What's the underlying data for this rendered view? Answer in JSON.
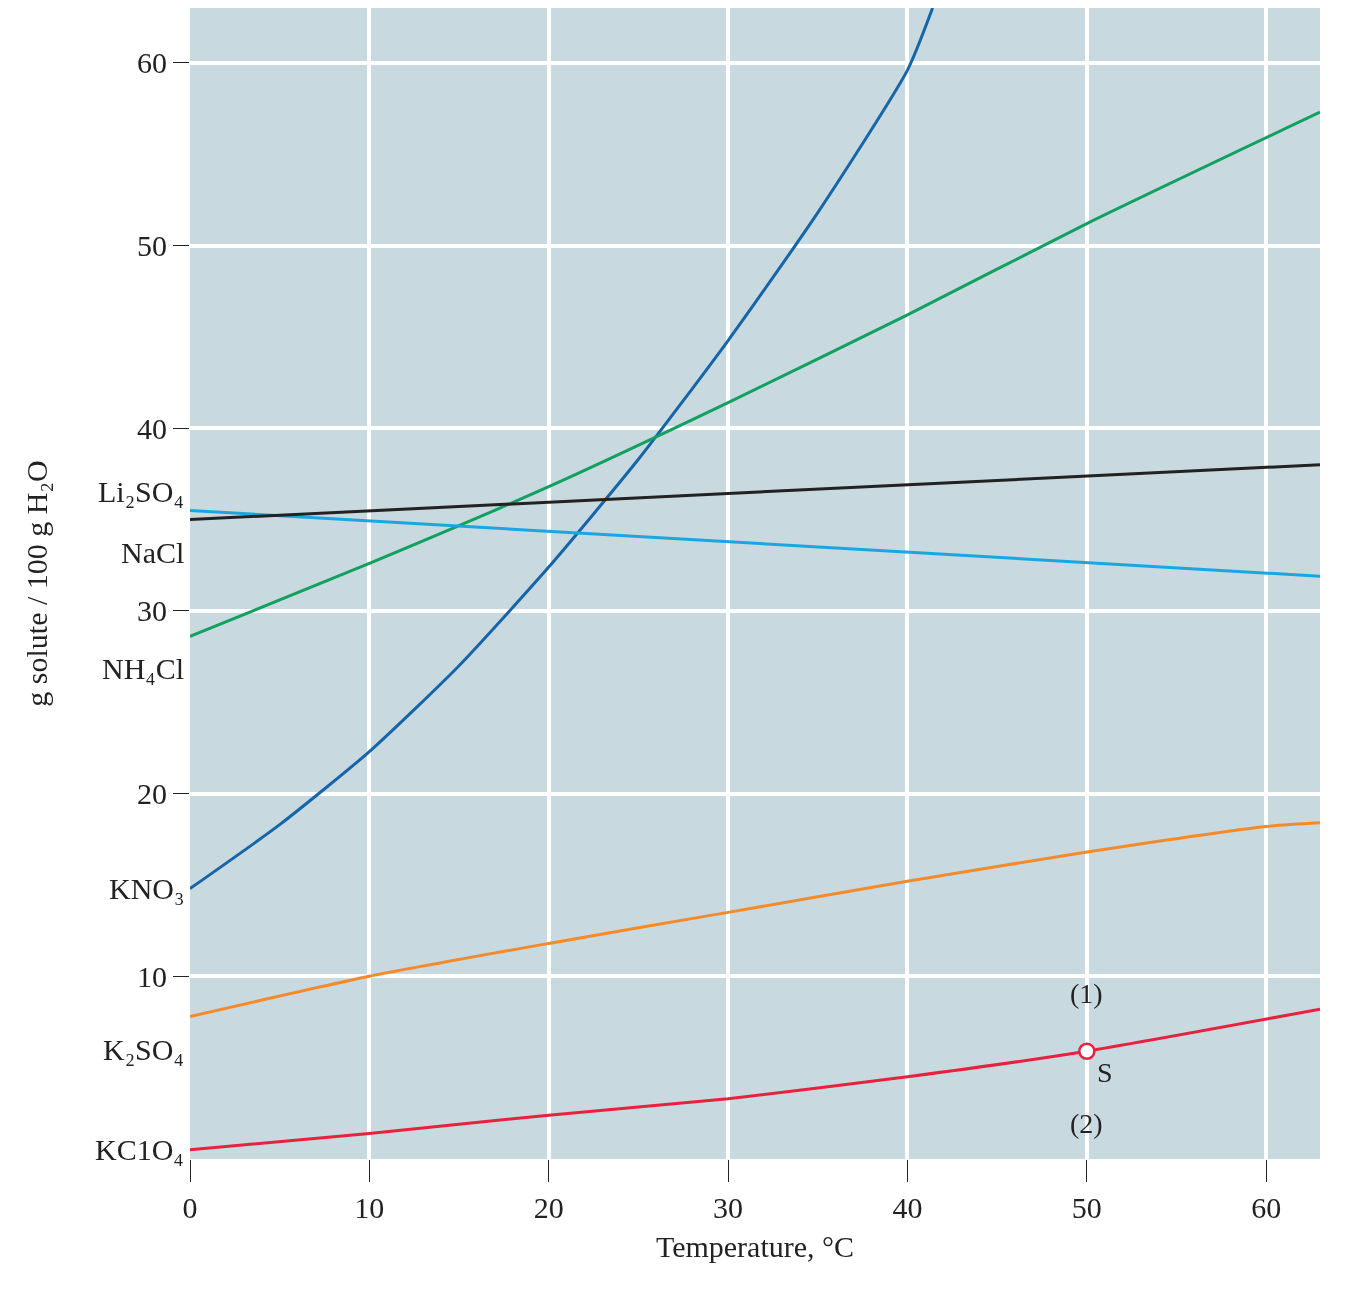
{
  "chart_data": {
    "type": "line",
    "xlabel": "Temperature, °C",
    "ylabel": "g solute / 100 g H₂O",
    "xlim": [
      0,
      63
    ],
    "ylim": [
      0,
      63
    ],
    "xticks": [
      0,
      10,
      20,
      30,
      40,
      50,
      60
    ],
    "yticks": [
      10,
      20,
      30,
      40,
      50,
      60
    ],
    "grid": true,
    "legend": false,
    "marker": "none",
    "line_style": "solid",
    "series": [
      {
        "name": "KNO₃",
        "color": "#1565a8",
        "x": [
          0,
          5,
          10,
          15,
          20,
          25,
          30,
          35,
          40,
          41.4
        ],
        "values": [
          14.8,
          18.3,
          22.3,
          27,
          32.4,
          38.3,
          44.8,
          51.8,
          59.6,
          63
        ]
      },
      {
        "name": "NH₄Cl",
        "color": "#12a060",
        "x": [
          0,
          10,
          20,
          30,
          40,
          50,
          63
        ],
        "values": [
          28.6,
          32.6,
          36.8,
          41.4,
          46.2,
          51.2,
          57.3
        ]
      },
      {
        "name": "Li₂SO₄",
        "color": "#1aa6e0",
        "x": [
          0,
          63
        ],
        "values": [
          35.5,
          31.9
        ]
      },
      {
        "name": "NaCl",
        "color": "#222222",
        "x": [
          0,
          63
        ],
        "values": [
          35,
          38
        ]
      },
      {
        "name": "K₂SO₄",
        "color": "#f58a2a",
        "x": [
          0,
          10,
          20,
          30,
          40,
          50,
          60,
          63
        ],
        "values": [
          7.8,
          10,
          11.8,
          13.5,
          15.2,
          16.8,
          18.2,
          18.4
        ]
      },
      {
        "name": "KC1O₄",
        "color": "#e8213f",
        "x": [
          0,
          10,
          20,
          30,
          40,
          50,
          63
        ],
        "values": [
          0.5,
          1.4,
          2.4,
          3.3,
          4.5,
          5.9,
          8.2
        ]
      },
      {
        "type": "scatter",
        "marker": "circle",
        "color": "#e8213f",
        "x": [
          50
        ],
        "values": [
          5.9
        ]
      }
    ],
    "annotations": [
      {
        "text": "S",
        "x": 50,
        "y": 5.9
      },
      "(1)",
      "(2)"
    ]
  }
}
